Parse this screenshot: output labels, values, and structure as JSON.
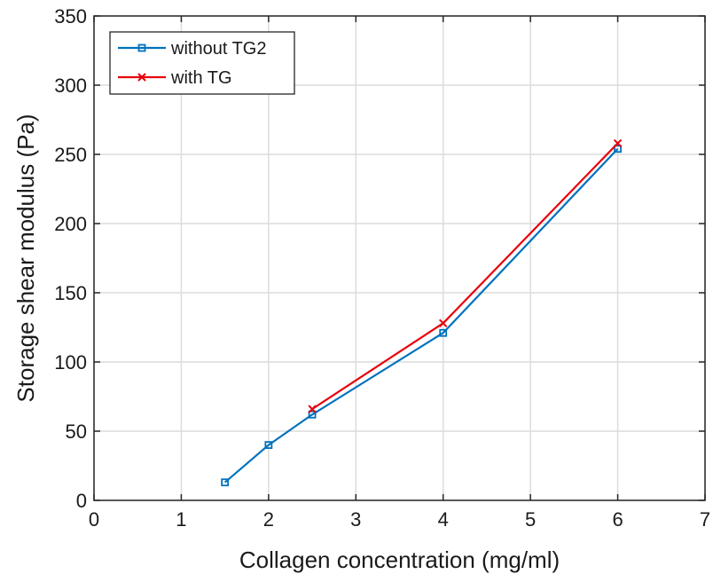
{
  "chart_data": {
    "type": "line",
    "title": "",
    "xlabel": "Collagen concentration (mg/ml)",
    "ylabel": "Storage shear modulus (Pa)",
    "xlim": [
      0,
      7
    ],
    "ylim": [
      0,
      350
    ],
    "xticks": [
      0,
      1,
      2,
      3,
      4,
      5,
      6,
      7
    ],
    "yticks": [
      0,
      50,
      100,
      150,
      200,
      250,
      300,
      350
    ],
    "grid": true,
    "legend_position": "top-left",
    "series": [
      {
        "name": "without TG2",
        "color": "#0072BD",
        "marker": "square",
        "x": [
          1.5,
          2,
          2.5,
          4,
          6
        ],
        "y": [
          13,
          40,
          62,
          121,
          254
        ]
      },
      {
        "name": "with TG",
        "color": "#E8000B",
        "marker": "x",
        "x": [
          2.5,
          4,
          6
        ],
        "y": [
          66,
          128,
          258
        ]
      }
    ]
  }
}
